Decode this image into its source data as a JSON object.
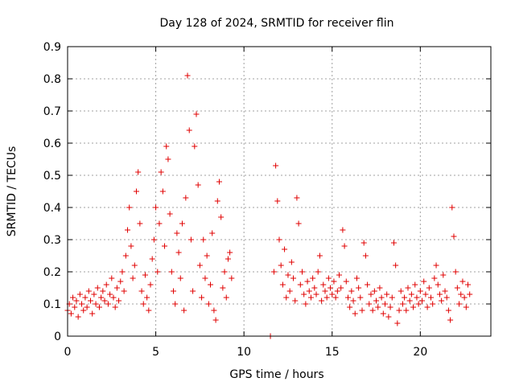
{
  "chart_data": {
    "type": "scatter",
    "title": "Day 128 of 2024, SRMTID for receiver flin",
    "xlabel": "GPS time / hours",
    "ylabel": "SRMTID / TECUs",
    "xlim": [
      0,
      24
    ],
    "ylim": [
      0,
      0.9
    ],
    "xticks": [
      0,
      5,
      10,
      15,
      20
    ],
    "xtick_labels": [
      "0",
      "5",
      "10",
      "15",
      "20"
    ],
    "yticks": [
      0,
      0.1,
      0.2,
      0.3,
      0.4,
      0.5,
      0.6,
      0.7,
      0.8,
      0.9
    ],
    "ytick_labels": [
      "0",
      "0.1",
      "0.2",
      "0.3",
      "0.4",
      "0.5",
      "0.6",
      "0.7",
      "0.8",
      "0.9"
    ],
    "grid": true,
    "marker": "+",
    "color": "#e00000",
    "series": [
      {
        "name": "SRMTID",
        "points": [
          [
            0.0,
            0.08
          ],
          [
            0.1,
            0.1
          ],
          [
            0.2,
            0.07
          ],
          [
            0.3,
            0.12
          ],
          [
            0.4,
            0.09
          ],
          [
            0.5,
            0.11
          ],
          [
            0.6,
            0.06
          ],
          [
            0.7,
            0.13
          ],
          [
            0.8,
            0.1
          ],
          [
            0.9,
            0.08
          ],
          [
            1.0,
            0.12
          ],
          [
            1.1,
            0.09
          ],
          [
            1.2,
            0.14
          ],
          [
            1.3,
            0.11
          ],
          [
            1.4,
            0.07
          ],
          [
            1.5,
            0.13
          ],
          [
            1.6,
            0.1
          ],
          [
            1.7,
            0.15
          ],
          [
            1.8,
            0.09
          ],
          [
            1.9,
            0.12
          ],
          [
            2.0,
            0.14
          ],
          [
            2.1,
            0.11
          ],
          [
            2.2,
            0.16
          ],
          [
            2.3,
            0.1
          ],
          [
            2.4,
            0.13
          ],
          [
            2.5,
            0.18
          ],
          [
            2.6,
            0.12
          ],
          [
            2.7,
            0.09
          ],
          [
            2.8,
            0.15
          ],
          [
            2.9,
            0.11
          ],
          [
            3.0,
            0.17
          ],
          [
            3.1,
            0.2
          ],
          [
            3.2,
            0.14
          ],
          [
            3.3,
            0.25
          ],
          [
            3.4,
            0.33
          ],
          [
            3.5,
            0.4
          ],
          [
            3.6,
            0.28
          ],
          [
            3.7,
            0.18
          ],
          [
            3.8,
            0.22
          ],
          [
            3.9,
            0.45
          ],
          [
            4.0,
            0.51
          ],
          [
            4.1,
            0.35
          ],
          [
            4.2,
            0.14
          ],
          [
            4.3,
            0.1
          ],
          [
            4.4,
            0.19
          ],
          [
            4.5,
            0.12
          ],
          [
            4.6,
            0.08
          ],
          [
            4.7,
            0.16
          ],
          [
            4.8,
            0.24
          ],
          [
            4.9,
            0.3
          ],
          [
            5.0,
            0.4
          ],
          [
            5.1,
            0.2
          ],
          [
            5.2,
            0.35
          ],
          [
            5.3,
            0.51
          ],
          [
            5.4,
            0.45
          ],
          [
            5.5,
            0.28
          ],
          [
            5.6,
            0.59
          ],
          [
            5.7,
            0.55
          ],
          [
            5.8,
            0.38
          ],
          [
            5.9,
            0.2
          ],
          [
            6.0,
            0.14
          ],
          [
            6.1,
            0.1
          ],
          [
            6.2,
            0.32
          ],
          [
            6.3,
            0.26
          ],
          [
            6.4,
            0.18
          ],
          [
            6.5,
            0.35
          ],
          [
            6.6,
            0.08
          ],
          [
            6.7,
            0.43
          ],
          [
            6.8,
            0.81
          ],
          [
            6.9,
            0.64
          ],
          [
            7.0,
            0.3
          ],
          [
            7.1,
            0.14
          ],
          [
            7.2,
            0.59
          ],
          [
            7.3,
            0.69
          ],
          [
            7.4,
            0.47
          ],
          [
            7.5,
            0.22
          ],
          [
            7.6,
            0.12
          ],
          [
            7.7,
            0.3
          ],
          [
            7.8,
            0.18
          ],
          [
            7.9,
            0.25
          ],
          [
            8.0,
            0.1
          ],
          [
            8.1,
            0.16
          ],
          [
            8.2,
            0.32
          ],
          [
            8.3,
            0.08
          ],
          [
            8.4,
            0.05
          ],
          [
            8.5,
            0.42
          ],
          [
            8.6,
            0.48
          ],
          [
            8.7,
            0.37
          ],
          [
            8.8,
            0.15
          ],
          [
            8.9,
            0.2
          ],
          [
            9.0,
            0.12
          ],
          [
            9.1,
            0.24
          ],
          [
            9.2,
            0.26
          ],
          [
            9.3,
            0.18
          ],
          [
            11.5,
            0.0
          ],
          [
            11.7,
            0.2
          ],
          [
            11.8,
            0.53
          ],
          [
            11.9,
            0.42
          ],
          [
            12.0,
            0.3
          ],
          [
            12.1,
            0.22
          ],
          [
            12.2,
            0.16
          ],
          [
            12.3,
            0.27
          ],
          [
            12.4,
            0.12
          ],
          [
            12.5,
            0.19
          ],
          [
            12.6,
            0.14
          ],
          [
            12.7,
            0.23
          ],
          [
            12.8,
            0.18
          ],
          [
            12.9,
            0.11
          ],
          [
            13.0,
            0.43
          ],
          [
            13.1,
            0.35
          ],
          [
            13.2,
            0.16
          ],
          [
            13.3,
            0.2
          ],
          [
            13.4,
            0.13
          ],
          [
            13.5,
            0.1
          ],
          [
            13.6,
            0.17
          ],
          [
            13.7,
            0.14
          ],
          [
            13.8,
            0.12
          ],
          [
            13.9,
            0.18
          ],
          [
            14.0,
            0.15
          ],
          [
            14.1,
            0.13
          ],
          [
            14.2,
            0.2
          ],
          [
            14.3,
            0.25
          ],
          [
            14.4,
            0.11
          ],
          [
            14.5,
            0.16
          ],
          [
            14.6,
            0.14
          ],
          [
            14.7,
            0.12
          ],
          [
            14.8,
            0.18
          ],
          [
            14.9,
            0.15
          ],
          [
            15.0,
            0.13
          ],
          [
            15.1,
            0.17
          ],
          [
            15.2,
            0.12
          ],
          [
            15.3,
            0.14
          ],
          [
            15.4,
            0.19
          ],
          [
            15.5,
            0.15
          ],
          [
            15.6,
            0.33
          ],
          [
            15.7,
            0.28
          ],
          [
            15.8,
            0.17
          ],
          [
            15.9,
            0.12
          ],
          [
            16.0,
            0.09
          ],
          [
            16.1,
            0.14
          ],
          [
            16.2,
            0.11
          ],
          [
            16.3,
            0.07
          ],
          [
            16.4,
            0.18
          ],
          [
            16.5,
            0.15
          ],
          [
            16.6,
            0.12
          ],
          [
            16.7,
            0.08
          ],
          [
            16.8,
            0.29
          ],
          [
            16.9,
            0.25
          ],
          [
            17.0,
            0.16
          ],
          [
            17.1,
            0.1
          ],
          [
            17.2,
            0.13
          ],
          [
            17.3,
            0.08
          ],
          [
            17.4,
            0.14
          ],
          [
            17.5,
            0.11
          ],
          [
            17.6,
            0.09
          ],
          [
            17.7,
            0.15
          ],
          [
            17.8,
            0.12
          ],
          [
            17.9,
            0.07
          ],
          [
            18.0,
            0.1
          ],
          [
            18.1,
            0.13
          ],
          [
            18.2,
            0.06
          ],
          [
            18.3,
            0.09
          ],
          [
            18.4,
            0.12
          ],
          [
            18.5,
            0.29
          ],
          [
            18.6,
            0.22
          ],
          [
            18.7,
            0.04
          ],
          [
            18.8,
            0.08
          ],
          [
            18.9,
            0.14
          ],
          [
            19.0,
            0.1
          ],
          [
            19.1,
            0.12
          ],
          [
            19.2,
            0.08
          ],
          [
            19.3,
            0.15
          ],
          [
            19.4,
            0.11
          ],
          [
            19.5,
            0.13
          ],
          [
            19.6,
            0.09
          ],
          [
            19.7,
            0.16
          ],
          [
            19.8,
            0.12
          ],
          [
            19.9,
            0.1
          ],
          [
            20.0,
            0.14
          ],
          [
            20.1,
            0.11
          ],
          [
            20.2,
            0.17
          ],
          [
            20.3,
            0.13
          ],
          [
            20.4,
            0.09
          ],
          [
            20.5,
            0.15
          ],
          [
            20.6,
            0.12
          ],
          [
            20.7,
            0.1
          ],
          [
            20.8,
            0.18
          ],
          [
            20.9,
            0.22
          ],
          [
            21.0,
            0.16
          ],
          [
            21.1,
            0.13
          ],
          [
            21.2,
            0.11
          ],
          [
            21.3,
            0.19
          ],
          [
            21.4,
            0.14
          ],
          [
            21.5,
            0.12
          ],
          [
            21.6,
            0.08
          ],
          [
            21.7,
            0.05
          ],
          [
            21.8,
            0.4
          ],
          [
            21.9,
            0.31
          ],
          [
            22.0,
            0.2
          ],
          [
            22.1,
            0.15
          ],
          [
            22.2,
            0.1
          ],
          [
            22.3,
            0.13
          ],
          [
            22.4,
            0.17
          ],
          [
            22.5,
            0.12
          ],
          [
            22.6,
            0.09
          ],
          [
            22.7,
            0.16
          ],
          [
            22.8,
            0.13
          ]
        ]
      }
    ]
  }
}
